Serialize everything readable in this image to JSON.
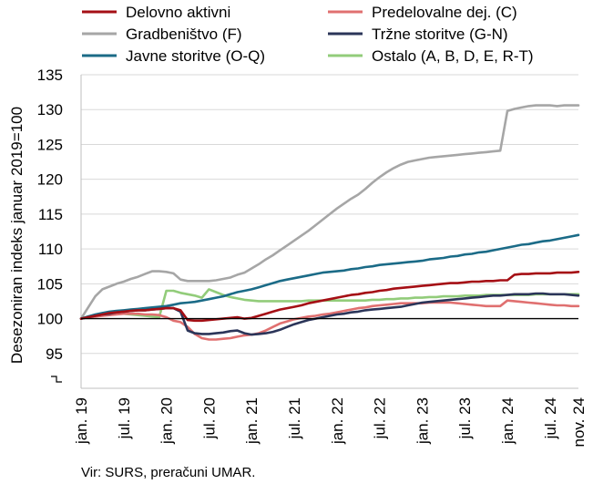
{
  "chart_data": {
    "type": "line",
    "ylabel": "Desezoniran indeks januar 2019=100",
    "source": "Vir: SURS, preračuni UMAR.",
    "ylim": [
      90,
      135
    ],
    "yticks": [
      95,
      100,
      105,
      110,
      115,
      120,
      125,
      130,
      135
    ],
    "baseline": 100,
    "x": [
      "2019-01",
      "2019-02",
      "2019-03",
      "2019-04",
      "2019-05",
      "2019-06",
      "2019-07",
      "2019-08",
      "2019-09",
      "2019-10",
      "2019-11",
      "2019-12",
      "2020-01",
      "2020-02",
      "2020-03",
      "2020-04",
      "2020-05",
      "2020-06",
      "2020-07",
      "2020-08",
      "2020-09",
      "2020-10",
      "2020-11",
      "2020-12",
      "2021-01",
      "2021-02",
      "2021-03",
      "2021-04",
      "2021-05",
      "2021-06",
      "2021-07",
      "2021-08",
      "2021-09",
      "2021-10",
      "2021-11",
      "2021-12",
      "2022-01",
      "2022-02",
      "2022-03",
      "2022-04",
      "2022-05",
      "2022-06",
      "2022-07",
      "2022-08",
      "2022-09",
      "2022-10",
      "2022-11",
      "2022-12",
      "2023-01",
      "2023-02",
      "2023-03",
      "2023-04",
      "2023-05",
      "2023-06",
      "2023-07",
      "2023-08",
      "2023-09",
      "2023-10",
      "2023-11",
      "2023-12",
      "2024-01",
      "2024-02",
      "2024-03",
      "2024-04",
      "2024-05",
      "2024-06",
      "2024-07",
      "2024-08",
      "2024-09",
      "2024-10",
      "2024-11"
    ],
    "xtick_labels": [
      {
        "date": "2019-01",
        "label": "jan. 19"
      },
      {
        "date": "2019-07",
        "label": "jul. 19"
      },
      {
        "date": "2020-01",
        "label": "jan. 20"
      },
      {
        "date": "2020-07",
        "label": "jul. 20"
      },
      {
        "date": "2021-01",
        "label": "jan. 21"
      },
      {
        "date": "2021-07",
        "label": "jul. 21"
      },
      {
        "date": "2022-01",
        "label": "jan. 22"
      },
      {
        "date": "2022-07",
        "label": "jul. 22"
      },
      {
        "date": "2023-01",
        "label": "jan. 23"
      },
      {
        "date": "2023-07",
        "label": "jul. 23"
      },
      {
        "date": "2024-01",
        "label": "jan. 24"
      },
      {
        "date": "2024-07",
        "label": "jul. 24"
      },
      {
        "date": "2024-11",
        "label": "nov. 24"
      }
    ],
    "series": [
      {
        "name": "Delovno aktivni",
        "color": "#a50f15",
        "values": [
          100,
          100.2,
          100.4,
          100.6,
          100.8,
          100.9,
          101,
          101.1,
          101.2,
          101.2,
          101.3,
          101.4,
          101.5,
          101.5,
          101.2,
          99.8,
          99.7,
          99.7,
          99.8,
          99.9,
          100,
          100.1,
          100.2,
          100,
          100.1,
          100.4,
          100.7,
          101,
          101.3,
          101.5,
          101.7,
          101.9,
          102.2,
          102.4,
          102.6,
          102.8,
          103,
          103.2,
          103.4,
          103.5,
          103.7,
          103.8,
          104,
          104.1,
          104.3,
          104.4,
          104.5,
          104.6,
          104.7,
          104.8,
          104.9,
          105,
          105.1,
          105.1,
          105.2,
          105.3,
          105.3,
          105.4,
          105.4,
          105.5,
          105.5,
          106.3,
          106.4,
          106.4,
          106.5,
          106.5,
          106.5,
          106.6,
          106.6,
          106.6,
          106.7
        ]
      },
      {
        "name": "Predelovalne dej. (C)",
        "color": "#e07070",
        "values": [
          100,
          100.2,
          100.3,
          100.4,
          100.5,
          100.6,
          100.7,
          100.7,
          100.7,
          100.6,
          100.6,
          100.5,
          100.2,
          99.7,
          99.5,
          98.8,
          97.8,
          97.2,
          97,
          97,
          97.1,
          97.2,
          97.4,
          97.6,
          97.7,
          97.9,
          98.3,
          98.8,
          99.3,
          99.6,
          99.9,
          100.1,
          100.3,
          100.4,
          100.6,
          100.7,
          100.9,
          101.1,
          101.3,
          101.5,
          101.6,
          101.8,
          101.9,
          102,
          102.1,
          102.2,
          102.2,
          102.2,
          102.2,
          102.3,
          102.3,
          102.3,
          102.3,
          102.2,
          102.1,
          102,
          101.9,
          101.8,
          101.8,
          101.8,
          102.6,
          102.5,
          102.4,
          102.3,
          102.2,
          102.1,
          102,
          101.9,
          101.9,
          101.8,
          101.8
        ]
      },
      {
        "name": "Gradbeništvo (F)",
        "color": "#a6a6a6",
        "values": [
          100,
          101.6,
          103.2,
          104.2,
          104.6,
          105,
          105.3,
          105.7,
          106,
          106.4,
          106.8,
          106.8,
          106.7,
          106.5,
          105.6,
          105.4,
          105.4,
          105.4,
          105.4,
          105.5,
          105.7,
          105.9,
          106.3,
          106.6,
          107.2,
          107.8,
          108.5,
          109.1,
          109.8,
          110.5,
          111.2,
          111.9,
          112.6,
          113.4,
          114.2,
          115,
          115.8,
          116.5,
          117.2,
          117.8,
          118.6,
          119.5,
          120.3,
          121,
          121.6,
          122.1,
          122.5,
          122.7,
          122.9,
          123.1,
          123.2,
          123.3,
          123.4,
          123.5,
          123.6,
          123.7,
          123.8,
          123.9,
          124,
          124.1,
          129.8,
          130.1,
          130.3,
          130.5,
          130.6,
          130.6,
          130.6,
          130.5,
          130.6,
          130.6,
          130.6
        ]
      },
      {
        "name": "Tržne storitve (G-N)",
        "color": "#2b3559",
        "values": [
          100,
          100.2,
          100.4,
          100.6,
          100.7,
          100.9,
          101,
          101.1,
          101.2,
          101.2,
          101.3,
          101.4,
          101.5,
          101.5,
          101,
          98.3,
          97.9,
          97.8,
          97.8,
          97.9,
          98,
          98.2,
          98.3,
          97.9,
          97.7,
          97.8,
          97.9,
          98.1,
          98.4,
          98.8,
          99.2,
          99.5,
          99.8,
          100,
          100.2,
          100.4,
          100.6,
          100.7,
          100.9,
          101,
          101.2,
          101.3,
          101.4,
          101.5,
          101.6,
          101.7,
          101.9,
          102.1,
          102.3,
          102.4,
          102.5,
          102.6,
          102.7,
          102.8,
          102.9,
          103,
          103.1,
          103.2,
          103.3,
          103.3,
          103.4,
          103.5,
          103.5,
          103.5,
          103.6,
          103.6,
          103.5,
          103.5,
          103.5,
          103.4,
          103.3
        ]
      },
      {
        "name": "Javne storitve (O-Q)",
        "color": "#1b6b87",
        "values": [
          100,
          100.3,
          100.6,
          100.8,
          101,
          101.1,
          101.2,
          101.3,
          101.4,
          101.5,
          101.6,
          101.7,
          101.8,
          102,
          102.2,
          102.3,
          102.4,
          102.6,
          102.8,
          103,
          103.2,
          103.5,
          103.8,
          104,
          104.2,
          104.5,
          104.8,
          105.1,
          105.4,
          105.6,
          105.8,
          106,
          106.2,
          106.4,
          106.6,
          106.7,
          106.8,
          106.9,
          107.1,
          107.2,
          107.4,
          107.5,
          107.7,
          107.8,
          107.9,
          108,
          108.1,
          108.2,
          108.3,
          108.5,
          108.6,
          108.7,
          108.9,
          109,
          109.2,
          109.3,
          109.5,
          109.6,
          109.8,
          110,
          110.2,
          110.4,
          110.6,
          110.7,
          110.9,
          111.1,
          111.2,
          111.4,
          111.6,
          111.8,
          112
        ]
      },
      {
        "name": "Ostalo (A, B, D, E, R-T)",
        "color": "#92cc7a",
        "values": [
          100,
          100.3,
          100.5,
          100.6,
          100.7,
          100.7,
          100.7,
          100.6,
          100.5,
          100.4,
          100.3,
          100.2,
          104,
          104,
          103.7,
          103.5,
          103.3,
          103,
          104.2,
          103.8,
          103.4,
          103.1,
          102.9,
          102.7,
          102.6,
          102.5,
          102.5,
          102.5,
          102.5,
          102.5,
          102.5,
          102.5,
          102.6,
          102.6,
          102.6,
          102.6,
          102.6,
          102.6,
          102.6,
          102.6,
          102.6,
          102.7,
          102.7,
          102.8,
          102.8,
          102.9,
          102.9,
          103,
          103,
          103.1,
          103.1,
          103.2,
          103.2,
          103.2,
          103.3,
          103.3,
          103.3,
          103.4,
          103.4,
          103.4,
          103.4,
          103.4,
          103.4,
          103.4,
          103.5,
          103.5,
          103.5,
          103.5,
          103.5,
          103.5,
          103.5
        ]
      }
    ],
    "legend": [
      {
        "series": 0
      },
      {
        "series": 1
      },
      {
        "series": 2
      },
      {
        "series": 3
      },
      {
        "series": 4
      },
      {
        "series": 5
      }
    ]
  }
}
